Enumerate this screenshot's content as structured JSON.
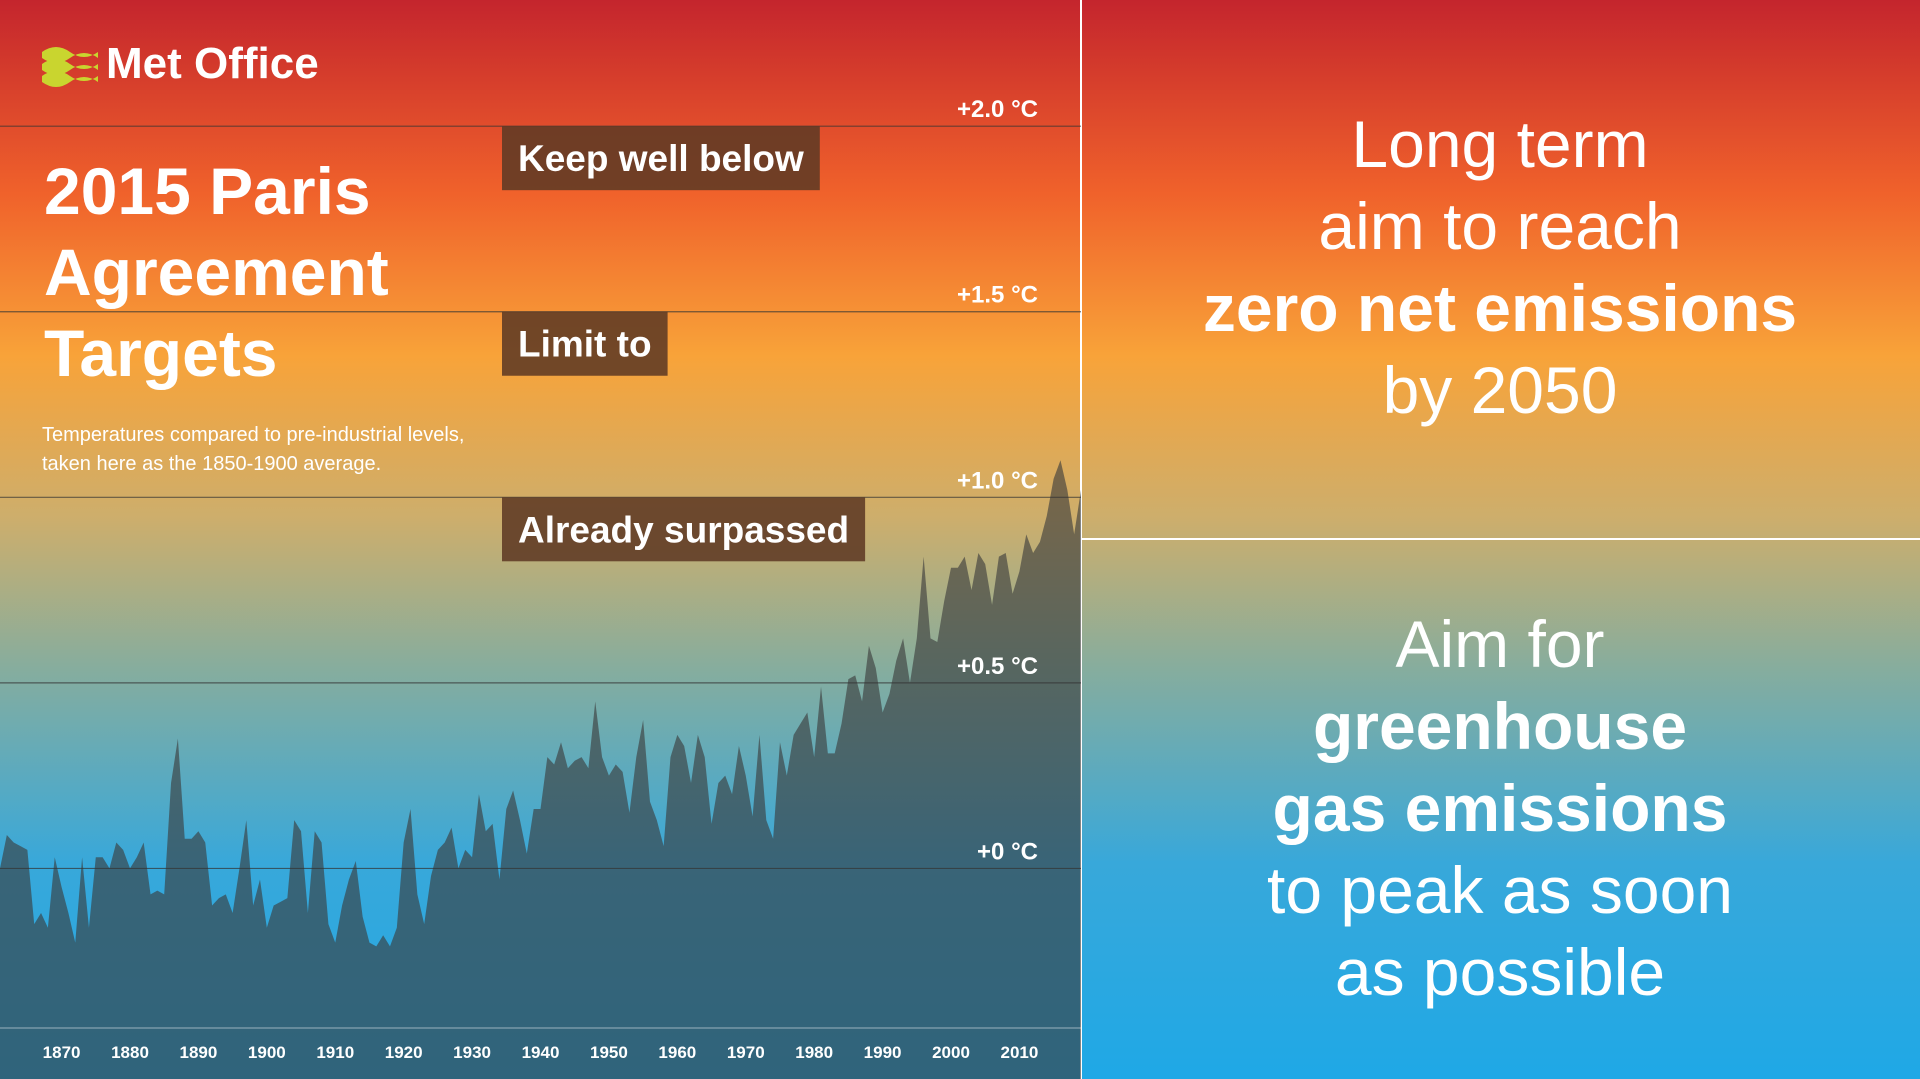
{
  "logo": "Met Office",
  "title_lines": [
    "2015 Paris",
    "Agreement",
    "Targets"
  ],
  "subtitle_lines": [
    "Temperatures compared to pre-industrial levels,",
    "taken here as the 1850-1900 average."
  ],
  "chart_data": {
    "type": "area",
    "color": "#3a3a3a",
    "annotations": [
      "Keep well below",
      "Limit to",
      "Already surpassed"
    ],
    "x": [
      1861,
      1862,
      1863,
      1864,
      1865,
      1866,
      1867,
      1868,
      1869,
      1870,
      1871,
      1872,
      1873,
      1874,
      1875,
      1876,
      1877,
      1878,
      1879,
      1880,
      1881,
      1882,
      1883,
      1884,
      1885,
      1886,
      1887,
      1888,
      1889,
      1890,
      1891,
      1892,
      1893,
      1894,
      1895,
      1896,
      1897,
      1898,
      1899,
      1900,
      1901,
      1902,
      1903,
      1904,
      1905,
      1906,
      1907,
      1908,
      1909,
      1910,
      1911,
      1912,
      1913,
      1914,
      1915,
      1916,
      1917,
      1918,
      1919,
      1920,
      1921,
      1922,
      1923,
      1924,
      1925,
      1926,
      1927,
      1928,
      1929,
      1930,
      1931,
      1932,
      1933,
      1934,
      1935,
      1936,
      1937,
      1938,
      1939,
      1940,
      1941,
      1942,
      1943,
      1944,
      1945,
      1946,
      1947,
      1948,
      1949,
      1950,
      1951,
      1952,
      1953,
      1954,
      1955,
      1956,
      1957,
      1958,
      1959,
      1960,
      1961,
      1962,
      1963,
      1964,
      1965,
      1966,
      1967,
      1968,
      1969,
      1970,
      1971,
      1972,
      1973,
      1974,
      1975,
      1976,
      1977,
      1978,
      1979,
      1980,
      1981,
      1982,
      1983,
      1984,
      1985,
      1986,
      1987,
      1988,
      1989,
      1990,
      1991,
      1992,
      1993,
      1994,
      1995,
      1996,
      1997,
      1998,
      1999,
      2000,
      2001,
      2002,
      2003,
      2004,
      2005,
      2006,
      2007,
      2008,
      2009,
      2010,
      2011,
      2012,
      2013,
      2014,
      2015,
      2016,
      2017,
      2018,
      2019
    ],
    "values": [
      0.0,
      0.09,
      0.07,
      0.06,
      0.05,
      -0.15,
      -0.12,
      -0.16,
      0.03,
      -0.05,
      -0.12,
      -0.2,
      0.03,
      -0.16,
      0.03,
      0.03,
      0.0,
      0.07,
      0.05,
      0.0,
      0.03,
      0.07,
      -0.07,
      -0.06,
      -0.07,
      0.23,
      0.35,
      0.08,
      0.08,
      0.1,
      0.07,
      -0.1,
      -0.08,
      -0.07,
      -0.12,
      0.0,
      0.13,
      -0.1,
      -0.03,
      -0.16,
      -0.1,
      -0.09,
      -0.08,
      0.13,
      0.1,
      -0.12,
      0.1,
      0.07,
      -0.15,
      -0.2,
      -0.1,
      -0.03,
      0.02,
      -0.13,
      -0.2,
      -0.21,
      -0.18,
      -0.21,
      -0.16,
      0.07,
      0.16,
      -0.07,
      -0.15,
      -0.02,
      0.05,
      0.07,
      0.11,
      0.0,
      0.05,
      0.03,
      0.2,
      0.1,
      0.12,
      -0.03,
      0.16,
      0.21,
      0.13,
      0.04,
      0.16,
      0.16,
      0.3,
      0.28,
      0.34,
      0.27,
      0.29,
      0.3,
      0.27,
      0.45,
      0.3,
      0.25,
      0.28,
      0.26,
      0.15,
      0.3,
      0.4,
      0.18,
      0.13,
      0.06,
      0.3,
      0.36,
      0.33,
      0.23,
      0.36,
      0.3,
      0.12,
      0.23,
      0.25,
      0.2,
      0.33,
      0.25,
      0.14,
      0.36,
      0.13,
      0.08,
      0.34,
      0.25,
      0.36,
      0.39,
      0.42,
      0.3,
      0.49,
      0.31,
      0.31,
      0.39,
      0.51,
      0.52,
      0.45,
      0.6,
      0.54,
      0.42,
      0.47,
      0.56,
      0.62,
      0.5,
      0.62,
      0.84,
      0.62,
      0.61,
      0.72,
      0.81,
      0.81,
      0.84,
      0.75,
      0.85,
      0.82,
      0.71,
      0.84,
      0.85,
      0.74,
      0.8,
      0.9,
      0.85,
      0.88,
      0.95,
      1.05,
      1.1,
      1.02,
      0.9,
      1.02
    ],
    "xlim": [
      1861,
      2019
    ],
    "xticks": [
      1870,
      1880,
      1890,
      1900,
      1910,
      1920,
      1930,
      1940,
      1950,
      1960,
      1970,
      1980,
      1990,
      2000,
      2010
    ],
    "ylim": [
      -0.43,
      2.34
    ],
    "yticks": [
      {
        "value": 0,
        "label": "+0 °C"
      },
      {
        "value": 0.5,
        "label": "+0.5 °C"
      },
      {
        "value": 1.0,
        "label": "+1.0 °C"
      },
      {
        "value": 1.5,
        "label": "+1.5 °C"
      },
      {
        "value": 2.0,
        "label": "+2.0 °C"
      }
    ],
    "grid": true
  },
  "right_panel": {
    "top": [
      {
        "text": "Long term",
        "bold": false
      },
      {
        "text": "aim to reach",
        "bold": false
      },
      {
        "text": "zero net emissions",
        "bold": true
      },
      {
        "text": "by 2050",
        "bold": false
      }
    ],
    "bottom": [
      {
        "text": "Aim for",
        "bold": false
      },
      {
        "text": "greenhouse",
        "bold": true
      },
      {
        "text": "gas emissions",
        "bold": true
      },
      {
        "text": "to peak as soon",
        "bold": false
      },
      {
        "text": "as possible",
        "bold": false
      }
    ]
  }
}
